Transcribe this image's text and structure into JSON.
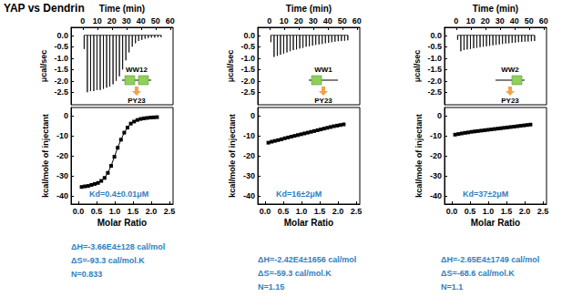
{
  "title": "YAP vs Dendrin",
  "chart_data": [
    {
      "inset": {
        "top_label": "WW12",
        "bottom_label": "PY23"
      },
      "raw": {
        "type": "line",
        "xlabel": "Time (min)",
        "ylabel": "μcal/sec",
        "color": "#000000",
        "line_style": "solid",
        "baseline": 0,
        "x": [
          1,
          3.2,
          5.4,
          7.6,
          9.8,
          12,
          14.2,
          16.4,
          18.6,
          20.8,
          23,
          25.2,
          27.4,
          29.6,
          31.8,
          34,
          36.2,
          38.4,
          40.6,
          42.8,
          45,
          47.2,
          49.4,
          51.6,
          53.8
        ],
        "values": [
          -0.6,
          -2.5,
          -2.45,
          -2.45,
          -2.4,
          -2.4,
          -2.35,
          -2.3,
          -2.25,
          -2.15,
          -2.0,
          -1.8,
          -1.5,
          -1.1,
          -0.75,
          -0.5,
          -0.35,
          -0.25,
          -0.2,
          -0.15,
          -0.12,
          -0.1,
          -0.1,
          -0.08,
          -0.08
        ],
        "xlim": [
          -8,
          62
        ],
        "xticks": [
          0,
          10,
          20,
          30,
          40,
          50,
          60
        ],
        "ylim": [
          -3.05,
          0.35
        ],
        "yticks": [
          {
            "value": 0,
            "label": "0.0"
          },
          -0.5,
          {
            "value": -1,
            "label": "-1.0"
          },
          -1.5,
          {
            "value": -2,
            "label": "-2.0"
          },
          -2.5
        ]
      },
      "integrated": {
        "type": "line",
        "xlabel": "Molar Ratio",
        "ylabel": "kcal/mole of injectant",
        "color": "#000000",
        "marker": "square",
        "line_style": "solid",
        "x": [
          0.09,
          0.18,
          0.27,
          0.36,
          0.45,
          0.54,
          0.63,
          0.72,
          0.81,
          0.9,
          0.99,
          1.08,
          1.17,
          1.26,
          1.35,
          1.44,
          1.53,
          1.62,
          1.71,
          1.8,
          1.89,
          1.98,
          2.07,
          2.16
        ],
        "values": [
          -35.5,
          -35.2,
          -35,
          -34.5,
          -34,
          -33.5,
          -32.5,
          -31,
          -28.5,
          -25,
          -20.5,
          -16,
          -12,
          -8.5,
          -6,
          -4,
          -3,
          -2.2,
          -1.7,
          -1.4,
          -1.2,
          -1,
          -0.9,
          -0.8
        ],
        "xlim": [
          -0.2,
          2.6
        ],
        "xticks": [
          {
            "value": 0,
            "label": "0.0"
          },
          0.5,
          {
            "value": 1,
            "label": "1.0"
          },
          1.5,
          {
            "value": 2,
            "label": "2.0"
          },
          2.5
        ],
        "ylim": [
          -44,
          4
        ],
        "yticks": [
          0,
          -10,
          -20,
          -30,
          -40
        ],
        "annotation": "Kd=0.4±0.01μM"
      },
      "results": [
        "ΔH=-3.66E4±128 cal/mol",
        "ΔS=-93.3 cal/mol.K",
        "N=0.833"
      ]
    },
    {
      "inset": {
        "top_label": "WW1",
        "bottom_label": "PY23"
      },
      "raw": {
        "type": "line",
        "xlabel": "Time (min)",
        "ylabel": "μcal/sec",
        "color": "#000000",
        "line_style": "solid",
        "baseline": 0,
        "x": [
          1,
          3.2,
          5.4,
          7.6,
          9.8,
          12,
          14.2,
          16.4,
          18.6,
          20.8,
          23,
          25.2,
          27.4,
          29.6,
          31.8,
          34,
          36.2,
          38.4,
          40.6,
          42.8,
          45,
          47.2,
          49.4,
          51.6,
          53.8
        ],
        "values": [
          -0.3,
          -0.95,
          -0.9,
          -0.85,
          -0.8,
          -0.75,
          -0.7,
          -0.65,
          -0.62,
          -0.58,
          -0.55,
          -0.5,
          -0.48,
          -0.45,
          -0.42,
          -0.4,
          -0.38,
          -0.35,
          -0.33,
          -0.3,
          -0.28,
          -0.26,
          -0.25,
          -0.24,
          -0.22
        ],
        "xlim": [
          -8,
          62
        ],
        "xticks": [
          0,
          10,
          20,
          30,
          40,
          50,
          60
        ],
        "ylim": [
          -3.05,
          0.35
        ],
        "yticks": [
          {
            "value": 0,
            "label": "0.0"
          },
          -0.5,
          {
            "value": -1,
            "label": "-1.0"
          },
          -1.5,
          {
            "value": -2,
            "label": "-2.0"
          },
          -2.5
        ]
      },
      "integrated": {
        "type": "line",
        "xlabel": "Molar Ratio",
        "ylabel": "kcal/mole of injectant",
        "color": "#000000",
        "marker": "square",
        "line_style": "solid",
        "x": [
          0.09,
          0.18,
          0.27,
          0.36,
          0.45,
          0.54,
          0.63,
          0.72,
          0.81,
          0.9,
          0.99,
          1.08,
          1.17,
          1.26,
          1.35,
          1.44,
          1.53,
          1.62,
          1.71,
          1.8,
          1.89,
          1.98,
          2.07,
          2.16
        ],
        "values": [
          -13.5,
          -13,
          -12.6,
          -12.2,
          -11.8,
          -11.3,
          -10.9,
          -10.5,
          -10.1,
          -9.7,
          -9.3,
          -8.9,
          -8.5,
          -8.1,
          -7.7,
          -7.3,
          -6.9,
          -6.5,
          -6.1,
          -5.7,
          -5.3,
          -5,
          -4.7,
          -4.4
        ],
        "xlim": [
          -0.2,
          2.6
        ],
        "xticks": [
          {
            "value": 0,
            "label": "0.0"
          },
          0.5,
          {
            "value": 1,
            "label": "1.0"
          },
          1.5,
          {
            "value": 2,
            "label": "2.0"
          },
          2.5
        ],
        "ylim": [
          -44,
          4
        ],
        "yticks": [
          0,
          -10,
          -20,
          -30,
          -40
        ],
        "annotation": "Kd=16±2μM"
      },
      "results": [
        "ΔH=-2.42E4±1656 cal/mol",
        "ΔS=-59.3 cal/mol.K",
        "N=1.15"
      ]
    },
    {
      "inset": {
        "top_label": "WW2",
        "bottom_label": "PY23"
      },
      "raw": {
        "type": "line",
        "xlabel": "Time (min)",
        "ylabel": "μcal/sec",
        "color": "#000000",
        "line_style": "solid",
        "baseline": 0,
        "x": [
          1,
          3.2,
          5.4,
          7.6,
          9.8,
          12,
          14.2,
          16.4,
          18.6,
          20.8,
          23,
          25.2,
          27.4,
          29.6,
          31.8,
          34,
          36.2,
          38.4,
          40.6,
          42.8,
          45,
          47.2,
          49.4,
          51.6,
          53.8
        ],
        "values": [
          -0.2,
          -0.7,
          -0.65,
          -0.62,
          -0.6,
          -0.57,
          -0.55,
          -0.52,
          -0.5,
          -0.48,
          -0.46,
          -0.44,
          -0.42,
          -0.4,
          -0.38,
          -0.36,
          -0.35,
          -0.33,
          -0.32,
          -0.3,
          -0.29,
          -0.28,
          -0.27,
          -0.26,
          -0.25
        ],
        "xlim": [
          -8,
          62
        ],
        "xticks": [
          0,
          10,
          20,
          30,
          40,
          50,
          60
        ],
        "ylim": [
          -3.05,
          0.35
        ],
        "yticks": [
          {
            "value": 0,
            "label": "0.0"
          },
          -0.5,
          {
            "value": -1,
            "label": "-1.0"
          },
          -1.5,
          {
            "value": -2,
            "label": "-2.0"
          },
          -2.5
        ]
      },
      "integrated": {
        "type": "line",
        "xlabel": "Molar Ratio",
        "ylabel": "kcal/mole of injectant",
        "color": "#000000",
        "marker": "square",
        "line_style": "solid",
        "x": [
          0.09,
          0.18,
          0.27,
          0.36,
          0.45,
          0.54,
          0.63,
          0.72,
          0.81,
          0.9,
          0.99,
          1.08,
          1.17,
          1.26,
          1.35,
          1.44,
          1.53,
          1.62,
          1.71,
          1.8,
          1.89,
          1.98,
          2.07,
          2.16
        ],
        "values": [
          -9.5,
          -9.2,
          -8.9,
          -8.6,
          -8.4,
          -8.1,
          -7.9,
          -7.7,
          -7.5,
          -7.3,
          -7.1,
          -6.9,
          -6.7,
          -6.5,
          -6.3,
          -6.1,
          -5.9,
          -5.7,
          -5.5,
          -5.3,
          -5.1,
          -4.9,
          -4.7,
          -4.5
        ],
        "xlim": [
          -0.2,
          2.6
        ],
        "xticks": [
          {
            "value": 0,
            "label": "0.0"
          },
          0.5,
          {
            "value": 1,
            "label": "1.0"
          },
          1.5,
          {
            "value": 2,
            "label": "2.0"
          },
          2.5
        ],
        "ylim": [
          -44,
          4
        ],
        "yticks": [
          0,
          -10,
          -20,
          -30,
          -40
        ],
        "annotation": "Kd=37±2μM"
      },
      "results": [
        "ΔH=-2.65E4±1749 cal/mol",
        "ΔS=-68.6 cal/mol.K",
        "N=1.1"
      ]
    }
  ]
}
